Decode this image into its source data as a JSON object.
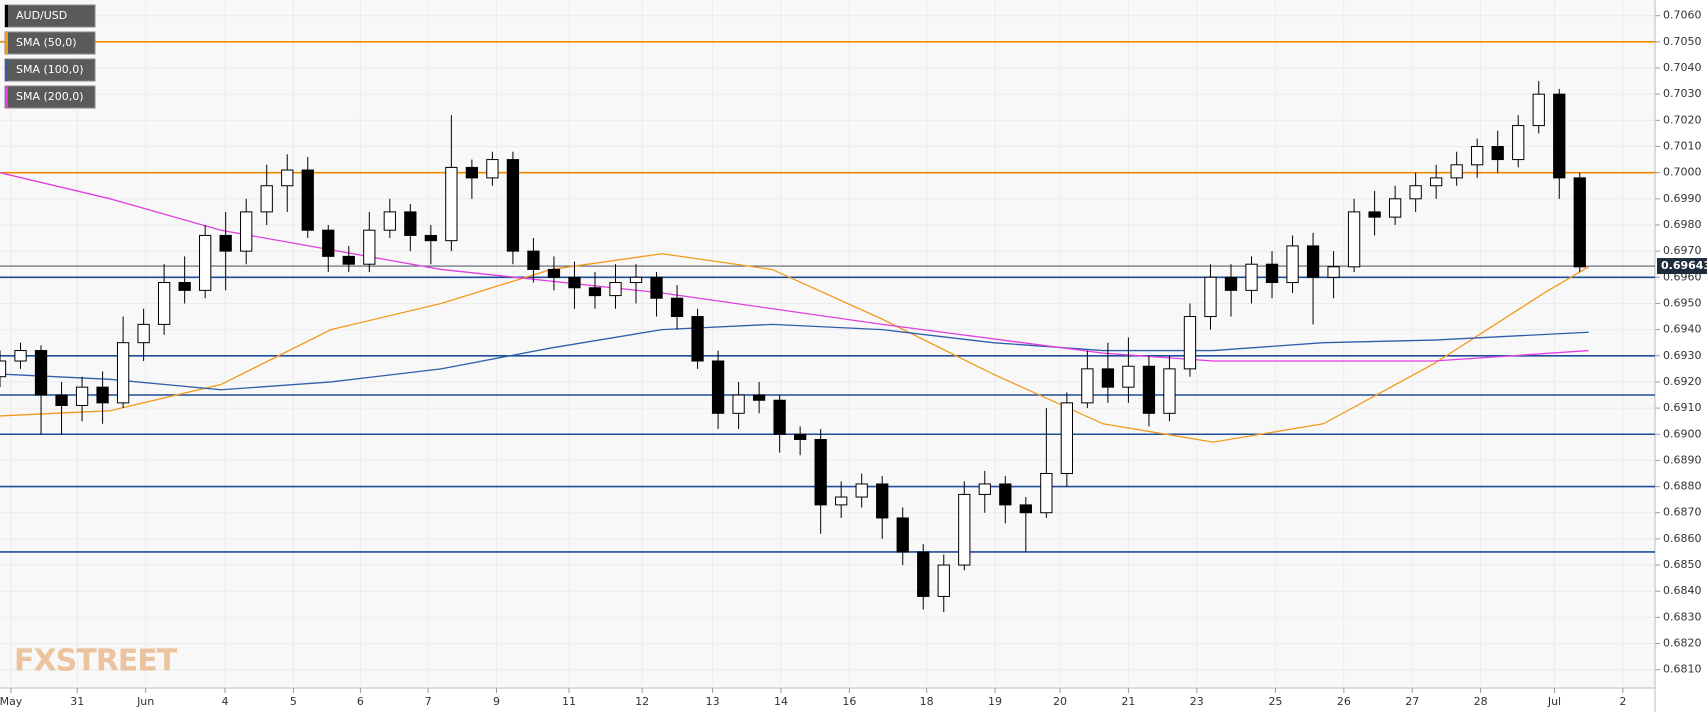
{
  "chart_data": {
    "type": "candlestick",
    "title": "AUD/USD",
    "watermark": "FXSTREET",
    "up_color": "#ffffff",
    "down_color": "#000000",
    "x": [
      0,
      3,
      6,
      9,
      12,
      15,
      18,
      21,
      24,
      27,
      30,
      33,
      36,
      39,
      42,
      45,
      48,
      51,
      54,
      57,
      60,
      63,
      66,
      69,
      72,
      75,
      78,
      81,
      84,
      87,
      90,
      93,
      96,
      99,
      102,
      105,
      108,
      111,
      114,
      117,
      120,
      123,
      126,
      129,
      132,
      135,
      138,
      141,
      144,
      147,
      150,
      153,
      156,
      159,
      162,
      165,
      168,
      171,
      174,
      177,
      180,
      183,
      186,
      189,
      192,
      195,
      198,
      201,
      204,
      207,
      210,
      213,
      216,
      219,
      222,
      225,
      228,
      231
    ],
    "open": [
      0.6922,
      0.6928,
      0.6932,
      0.6915,
      0.6911,
      0.6918,
      0.6912,
      0.6935,
      0.6942,
      0.6958,
      0.6955,
      0.6976,
      0.697,
      0.6985,
      0.6995,
      0.7001,
      0.6978,
      0.6968,
      0.6965,
      0.6978,
      0.6985,
      0.6976,
      0.6974,
      0.7002,
      0.6998,
      0.7005,
      0.697,
      0.6963,
      0.696,
      0.6956,
      0.6953,
      0.6958,
      0.696,
      0.6952,
      0.6945,
      0.6928,
      0.6908,
      0.6915,
      0.6913,
      0.69,
      0.6898,
      0.6873,
      0.6876,
      0.6881,
      0.6868,
      0.6855,
      0.6838,
      0.685,
      0.6877,
      0.6881,
      0.6873,
      0.687,
      0.6885,
      0.6912,
      0.6925,
      0.6918,
      0.6926,
      0.6908,
      0.6925,
      0.6945,
      0.696,
      0.6955,
      0.6965,
      0.6958,
      0.6972,
      0.696,
      0.6964,
      0.6985,
      0.6983,
      0.699,
      0.6995,
      0.6998,
      0.7003,
      0.701,
      0.7005,
      0.7018,
      0.703,
      0.6998
    ],
    "high": [
      0.6932,
      0.6935,
      0.6934,
      0.692,
      0.6922,
      0.6924,
      0.6945,
      0.6948,
      0.6965,
      0.6968,
      0.698,
      0.6985,
      0.699,
      0.7003,
      0.7007,
      0.7006,
      0.698,
      0.6972,
      0.6985,
      0.699,
      0.6988,
      0.698,
      0.7022,
      0.7005,
      0.7008,
      0.7008,
      0.6975,
      0.6968,
      0.6966,
      0.6962,
      0.6965,
      0.6965,
      0.6962,
      0.6957,
      0.6948,
      0.6932,
      0.692,
      0.692,
      0.6915,
      0.6903,
      0.6902,
      0.6882,
      0.6885,
      0.6884,
      0.6872,
      0.6858,
      0.6854,
      0.6882,
      0.6886,
      0.6884,
      0.6876,
      0.691,
      0.6916,
      0.6932,
      0.6935,
      0.6937,
      0.693,
      0.693,
      0.695,
      0.6965,
      0.6965,
      0.6968,
      0.697,
      0.6976,
      0.6977,
      0.697,
      0.699,
      0.6993,
      0.6995,
      0.7,
      0.7003,
      0.7008,
      0.7013,
      0.7016,
      0.7022,
      0.7035,
      0.7032,
      0.7
    ],
    "low": [
      0.6918,
      0.6925,
      0.69,
      0.69,
      0.6905,
      0.6904,
      0.691,
      0.6928,
      0.6938,
      0.695,
      0.6952,
      0.6955,
      0.6965,
      0.698,
      0.6985,
      0.6975,
      0.6962,
      0.6962,
      0.6962,
      0.6975,
      0.697,
      0.6965,
      0.697,
      0.699,
      0.6995,
      0.6965,
      0.6958,
      0.6955,
      0.6948,
      0.6948,
      0.6948,
      0.695,
      0.6945,
      0.694,
      0.6925,
      0.6902,
      0.6902,
      0.6908,
      0.6893,
      0.6892,
      0.6862,
      0.6868,
      0.6872,
      0.686,
      0.685,
      0.6833,
      0.6832,
      0.6848,
      0.687,
      0.6866,
      0.6855,
      0.6868,
      0.688,
      0.691,
      0.6912,
      0.6912,
      0.6903,
      0.6905,
      0.6922,
      0.694,
      0.6945,
      0.695,
      0.6952,
      0.6954,
      0.6942,
      0.6952,
      0.6962,
      0.6976,
      0.698,
      0.6985,
      0.699,
      0.6995,
      0.6998,
      0.7,
      0.7002,
      0.7015,
      0.699,
      0.6962
    ],
    "close": [
      0.6928,
      0.6932,
      0.6915,
      0.6911,
      0.6918,
      0.6912,
      0.6935,
      0.6942,
      0.6958,
      0.6955,
      0.6976,
      0.697,
      0.6985,
      0.6995,
      0.7001,
      0.6978,
      0.6968,
      0.6965,
      0.6978,
      0.6985,
      0.6976,
      0.6974,
      0.7002,
      0.6998,
      0.7005,
      0.697,
      0.6963,
      0.696,
      0.6956,
      0.6953,
      0.6958,
      0.696,
      0.6952,
      0.6945,
      0.6928,
      0.6908,
      0.6915,
      0.6913,
      0.69,
      0.6898,
      0.6873,
      0.6876,
      0.6881,
      0.6868,
      0.6855,
      0.6838,
      0.685,
      0.6877,
      0.6881,
      0.6873,
      0.687,
      0.6885,
      0.6912,
      0.6925,
      0.6918,
      0.6926,
      0.6908,
      0.6925,
      0.6945,
      0.696,
      0.6955,
      0.6965,
      0.6958,
      0.6972,
      0.696,
      0.6964,
      0.6985,
      0.6983,
      0.699,
      0.6995,
      0.6998,
      0.7003,
      0.701,
      0.7005,
      0.7018,
      0.703,
      0.6998,
      0.6964
    ],
    "series": [
      {
        "name": "SMA (50,0)",
        "color": "#f39a1e",
        "x": [
          0,
          16.1,
          32.3,
          48.4,
          64.5,
          80.6,
          96.8,
          112.9,
          129,
          145.2,
          161.3,
          177.4,
          193.5,
          209.7,
          225.8,
          232.3
        ],
        "values": [
          0.6907,
          0.6909,
          0.6919,
          0.694,
          0.695,
          0.6963,
          0.6969,
          0.6963,
          0.6944,
          0.6923,
          0.6904,
          0.6897,
          0.6904,
          0.6927,
          0.6954,
          0.6964
        ]
      },
      {
        "name": "SMA (100,0)",
        "color": "#2f5fa8",
        "x": [
          0,
          16.1,
          32.3,
          48.4,
          64.5,
          80.6,
          96.8,
          112.9,
          129,
          145.2,
          161.3,
          177.4,
          193.5,
          209.7,
          232.3
        ],
        "values": [
          0.6923,
          0.6921,
          0.6917,
          0.692,
          0.6925,
          0.6933,
          0.694,
          0.6942,
          0.694,
          0.6935,
          0.6932,
          0.6932,
          0.6935,
          0.6936,
          0.6939
        ]
      },
      {
        "name": "SMA (200,0)",
        "color": "#e23fe0",
        "x": [
          0,
          16.1,
          32.3,
          64.5,
          96.8,
          129,
          161.3,
          177.4,
          209.7,
          232.3
        ],
        "values": [
          0.7,
          0.699,
          0.6978,
          0.6963,
          0.6954,
          0.6942,
          0.6931,
          0.6928,
          0.6928,
          0.6932
        ]
      }
    ],
    "legend_series_color": "#000000",
    "levels": [
      {
        "value": 0.705,
        "color": "#f08a00"
      },
      {
        "value": 0.7,
        "color": "#f08a00"
      },
      {
        "value": 0.696,
        "color": "#1f4e99"
      },
      {
        "value": 0.693,
        "color": "#1f4e99"
      },
      {
        "value": 0.6915,
        "color": "#1f4e99"
      },
      {
        "value": 0.69,
        "color": "#1f4e99"
      },
      {
        "value": 0.688,
        "color": "#1f4e99"
      },
      {
        "value": 0.6855,
        "color": "#1f4e99"
      }
    ],
    "last_price": 0.69643,
    "xlim": [
      0,
      242
    ],
    "xticks": [
      {
        "value": 1.6,
        "label": "May"
      },
      {
        "value": 11.3,
        "label": "31"
      },
      {
        "value": 21.3,
        "label": "Jun"
      },
      {
        "value": 32.9,
        "label": "4"
      },
      {
        "value": 42.9,
        "label": "5"
      },
      {
        "value": 52.7,
        "label": "6"
      },
      {
        "value": 62.6,
        "label": "7"
      },
      {
        "value": 72.6,
        "label": "9"
      },
      {
        "value": 83.2,
        "label": "11"
      },
      {
        "value": 93.9,
        "label": "12"
      },
      {
        "value": 104.2,
        "label": "13"
      },
      {
        "value": 114.2,
        "label": "14"
      },
      {
        "value": 124.2,
        "label": "16"
      },
      {
        "value": 135.5,
        "label": "18"
      },
      {
        "value": 145.5,
        "label": "19"
      },
      {
        "value": 155,
        "label": "20"
      },
      {
        "value": 165,
        "label": "21"
      },
      {
        "value": 175,
        "label": "23"
      },
      {
        "value": 186.5,
        "label": "25"
      },
      {
        "value": 196.5,
        "label": "26"
      },
      {
        "value": 206.5,
        "label": "27"
      },
      {
        "value": 216.5,
        "label": "28"
      },
      {
        "value": 227.3,
        "label": "Jul"
      },
      {
        "value": 237.3,
        "label": "2"
      }
    ],
    "ylim": [
      0.6803,
      0.7066
    ],
    "yticks": [
      {
        "value": 0.706,
        "label": "0.7060"
      },
      {
        "value": 0.705,
        "label": "0.7050"
      },
      {
        "value": 0.704,
        "label": "0.7040"
      },
      {
        "value": 0.703,
        "label": "0.7030"
      },
      {
        "value": 0.702,
        "label": "0.7020"
      },
      {
        "value": 0.701,
        "label": "0.7010"
      },
      {
        "value": 0.7,
        "label": "0.7000"
      },
      {
        "value": 0.699,
        "label": "0.6990"
      },
      {
        "value": 0.698,
        "label": "0.6980"
      },
      {
        "value": 0.697,
        "label": "0.6970"
      },
      {
        "value": 0.696,
        "label": "0.6960"
      },
      {
        "value": 0.695,
        "label": "0.6950"
      },
      {
        "value": 0.694,
        "label": "0.6940"
      },
      {
        "value": 0.693,
        "label": "0.6930"
      },
      {
        "value": 0.692,
        "label": "0.6920"
      },
      {
        "value": 0.691,
        "label": "0.6910"
      },
      {
        "value": 0.69,
        "label": "0.6900"
      },
      {
        "value": 0.689,
        "label": "0.6890"
      },
      {
        "value": 0.688,
        "label": "0.6880"
      },
      {
        "value": 0.687,
        "label": "0.6870"
      },
      {
        "value": 0.686,
        "label": "0.6860"
      },
      {
        "value": 0.685,
        "label": "0.6850"
      },
      {
        "value": 0.684,
        "label": "0.6840"
      },
      {
        "value": 0.683,
        "label": "0.6830"
      },
      {
        "value": 0.682,
        "label": "0.6820"
      },
      {
        "value": 0.681,
        "label": "0.6810"
      }
    ],
    "grid": true
  }
}
